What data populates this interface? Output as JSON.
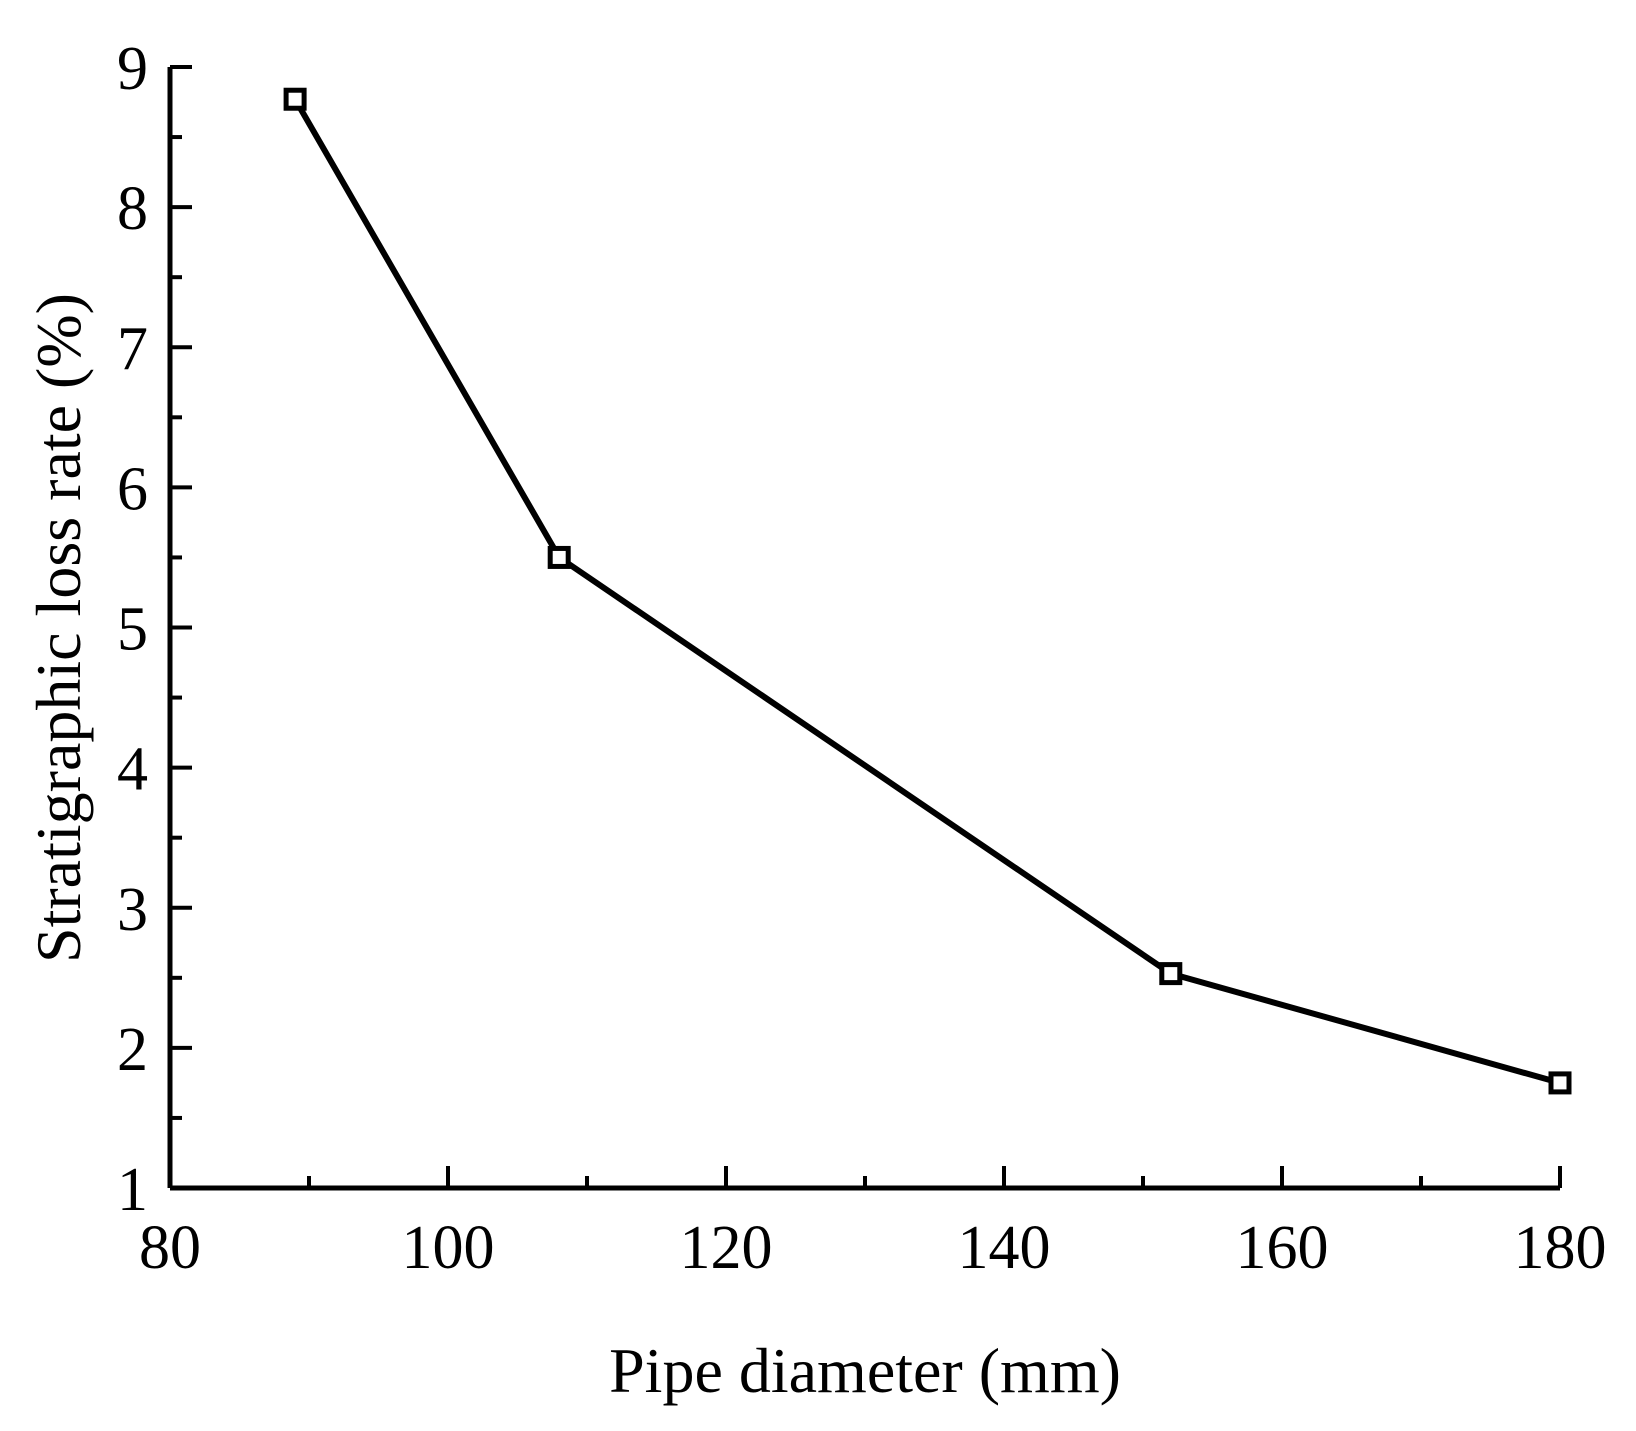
{
  "chart_data": {
    "type": "line",
    "title": "",
    "xlabel": "Pipe diameter (mm)",
    "ylabel": "Stratigraphic loss rate (%)",
    "xlim": [
      80,
      180
    ],
    "ylim": [
      1,
      9
    ],
    "x_ticks": [
      80,
      100,
      120,
      140,
      160,
      180
    ],
    "y_ticks": [
      1,
      2,
      3,
      4,
      5,
      6,
      7,
      8,
      9
    ],
    "x_minor_step": 10,
    "y_minor_step": 0.5,
    "grid": false,
    "legend": "none",
    "marker": "open-square",
    "series": [
      {
        "x": [
          89,
          108,
          152,
          180
        ],
        "y": [
          8.77,
          5.5,
          2.53,
          1.75
        ]
      }
    ]
  }
}
